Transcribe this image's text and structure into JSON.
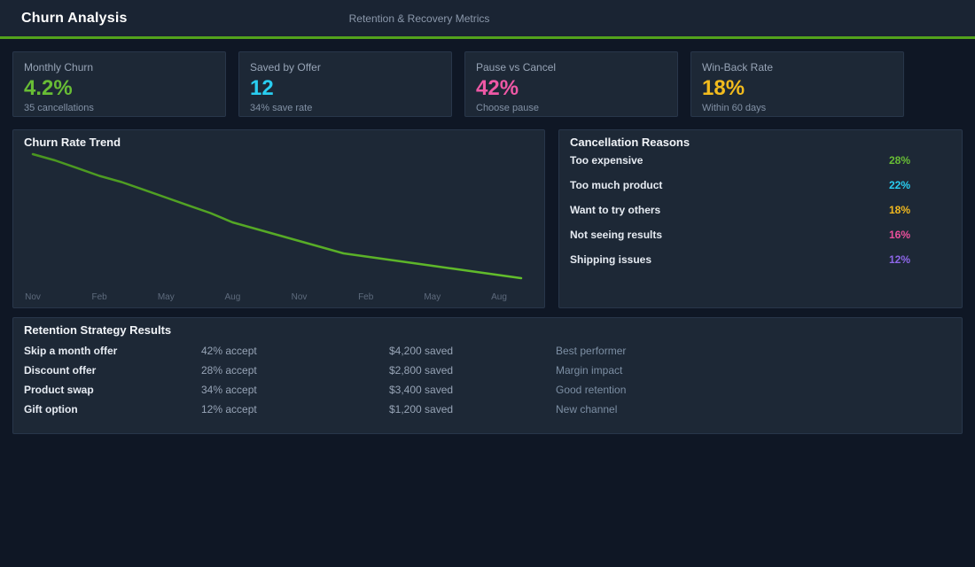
{
  "header": {
    "title": "Churn Analysis",
    "subtitle": "Retention & Recovery Metrics",
    "accent_line_color": "#53a31c"
  },
  "kpis": [
    {
      "label": "Monthly Churn",
      "value": "4.2%",
      "sub": "35 cancellations",
      "color": "#68bd35"
    },
    {
      "label": "Saved by Offer",
      "value": "12",
      "sub": "34% save rate",
      "color": "#29cdf0"
    },
    {
      "label": "Pause vs Cancel",
      "value": "42%",
      "sub": "Choose pause",
      "color": "#ee58a5"
    },
    {
      "label": "Win-Back Rate",
      "value": "18%",
      "sub": "Within 60 days",
      "color": "#f2bb1d"
    }
  ],
  "chart_data": {
    "type": "line",
    "title": "Churn Rate Trend",
    "x_tick_labels": [
      "Nov",
      "Feb",
      "May",
      "Aug",
      "Nov",
      "Feb",
      "May",
      "Aug"
    ],
    "tick_every": 3,
    "values": [
      8.2,
      8.0,
      7.75,
      7.5,
      7.3,
      7.05,
      6.8,
      6.55,
      6.3,
      6.0,
      5.8,
      5.6,
      5.4,
      5.2,
      5.0,
      4.9,
      4.8,
      4.7,
      4.6,
      4.5,
      4.4,
      4.3,
      4.2
    ],
    "unit": "%",
    "ylim": [
      4.2,
      8.2
    ],
    "grid": false,
    "legend": false,
    "line_color_start": "#4a9620",
    "line_color_end": "#63bf2c",
    "tick_label_color": "#5e6b7d"
  },
  "reasons": {
    "title": "Cancellation Reasons",
    "items": [
      {
        "label": "Too expensive",
        "value": "28%",
        "color": "#68bd35"
      },
      {
        "label": "Too much product",
        "value": "22%",
        "color": "#29cdf0"
      },
      {
        "label": "Want to try others",
        "value": "18%",
        "color": "#f0b81f"
      },
      {
        "label": "Not seeing results",
        "value": "16%",
        "color": "#ea4f9b"
      },
      {
        "label": "Shipping issues",
        "value": "12%",
        "color": "#8d66e8"
      }
    ]
  },
  "strategies": {
    "title": "Retention Strategy Results",
    "rows": [
      {
        "name": "Skip a month offer",
        "accept": "42% accept",
        "saved": "$4,200 saved",
        "note": "Best performer"
      },
      {
        "name": "Discount offer",
        "accept": "28% accept",
        "saved": "$2,800 saved",
        "note": "Margin impact"
      },
      {
        "name": "Product swap",
        "accept": "34% accept",
        "saved": "$3,400 saved",
        "note": "Good retention"
      },
      {
        "name": "Gift option",
        "accept": "12% accept",
        "saved": "$1,200 saved",
        "note": "New channel"
      }
    ]
  }
}
